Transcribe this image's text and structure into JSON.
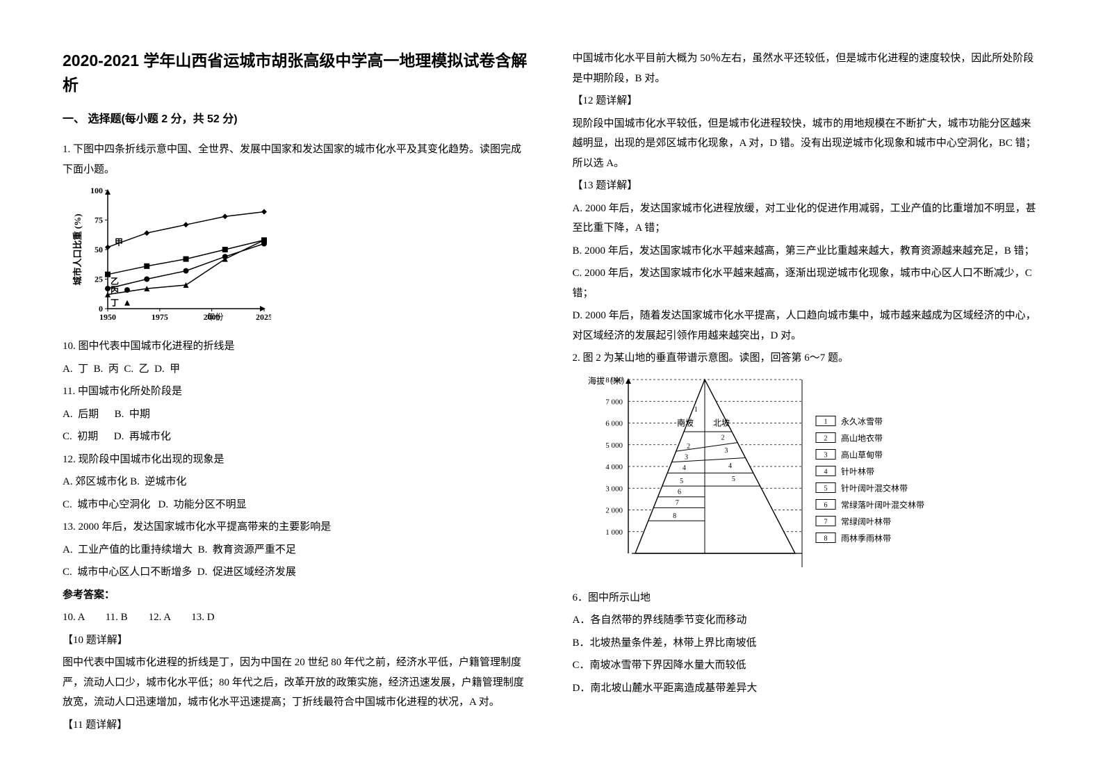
{
  "doc_title": "2020-2021 学年山西省运城市胡张高级中学高一地理模拟试卷含解析",
  "section1_head": "一、 选择题(每小题 2 分，共 52 分)",
  "q1_intro": "1. 下图中四条折线示意中国、全世界、发展中国家和发达国家的城市化水平及其变化趋势。读图完成下面小题。",
  "chart1": {
    "y_label": "城市人口比重 (%)",
    "x_label": "年份",
    "ymin": 0,
    "ymax": 100,
    "ystep": 25,
    "xticks": [
      "1950",
      "1975",
      "2000",
      "2025"
    ],
    "series": {
      "jia": {
        "label": "甲",
        "marker": "diamond",
        "color": "#000",
        "pts": [
          [
            0,
            52
          ],
          [
            1,
            64
          ],
          [
            2,
            71
          ],
          [
            3,
            78
          ],
          [
            4,
            82
          ]
        ]
      },
      "yi": {
        "label": "乙",
        "marker": "square",
        "color": "#000",
        "pts": [
          [
            0,
            29
          ],
          [
            1,
            36
          ],
          [
            2,
            42
          ],
          [
            3,
            50
          ],
          [
            4,
            58
          ]
        ]
      },
      "bing": {
        "label": "丙",
        "marker": "circle",
        "color": "#000",
        "pts": [
          [
            0,
            17
          ],
          [
            1,
            25
          ],
          [
            2,
            32
          ],
          [
            3,
            44
          ],
          [
            4,
            55
          ]
        ]
      },
      "ding": {
        "label": "丁",
        "marker": "triangle",
        "color": "#000",
        "pts": [
          [
            0,
            12
          ],
          [
            1,
            17
          ],
          [
            2,
            20
          ],
          [
            3,
            42
          ],
          [
            4,
            58
          ]
        ]
      }
    }
  },
  "q10": "10.  图中代表中国城市化进程的折线是",
  "q10_opts": "A.  丁  B.  丙  C.  乙  D.  甲",
  "q11": "11.  中国城市化所处阶段是",
  "q11_a": "A.  后期      B.  中期",
  "q11_b": "C.  初期      D.  再城市化",
  "q12": "12.  现阶段中国城市化出现的现象是",
  "q12_a": "A. 郊区城市化 B.  逆城市化",
  "q12_b": "C.  城市中心空洞化   D.  功能分区不明显",
  "q13": "13.  2000 年后，发达国家城市化水平提高带来的主要影响是",
  "q13_a": "A.  工业产值的比重持续增大  B.  教育资源严重不足",
  "q13_b": "C.  城市中心区人口不断增多  D.  促进区域经济发展",
  "ans_head": "参考答案：",
  "ans_row": "10. A        11. B        12. A        13. D",
  "exp10_head": "【10 题详解】",
  "exp10_body": "图中代表中国城市化进程的折线是丁，因为中国在 20 世纪 80 年代之前，经济水平低，户籍管理制度严，流动人口少，城市化水平低；80 年代之后，改革开放的政策实施，经济迅速发展，户籍管理制度放宽，流动人口迅速增加，城市化水平迅速提高；丁折线最符合中国城市化进程的状况，A 对。",
  "exp11_head": "【11 题详解】",
  "exp11_body": "中国城市化水平目前大概为 50％左右，虽然水平还较低，但是城市化进程的速度较快，因此所处阶段是中期阶段，B 对。",
  "exp12_head": "【12 题详解】",
  "exp12_body": "现阶段中国城市化水平较低，但是城市化进程较快，城市的用地规模在不断扩大，城市功能分区越来越明显，出现的是郊区城市化现象，A 对，D 错。没有出现逆城市化现象和城市中心空洞化，BC 错；所以选 A。",
  "exp13_head": "【13 题详解】",
  "exp13_a": "A.  2000 年后，发达国家城市化进程放缓，对工业化的促进作用减弱，工业产值的比重增加不明显，甚至比重下降，A 错；",
  "exp13_b": "B.  2000 年后，发达国家城市化水平越来越高，第三产业比重越来越大，教育资源越来越充足，B 错；",
  "exp13_c": "C.  2000 年后，发达国家城市化水平越来越高，逐渐出现逆城市化现象，城市中心区人口不断减少，C 错；",
  "exp13_d": "D.  2000 年后，随着发达国家城市化水平提高，人口趋向城市集中，城市越来越成为区域经济的中心，对区域经济的发展起引领作用越来越突出，D 对。",
  "q2_intro": "2. 图 2 为某山地的垂直带谱示意图。读图，回答第 6～7 题。",
  "chart2": {
    "y_label": "海拔（米）",
    "yticks": [
      1000,
      2000,
      3000,
      4000,
      5000,
      6000,
      7000,
      8000
    ],
    "left_label": "南坡",
    "right_label": "北坡",
    "legend_items": [
      {
        "n": "1",
        "t": "永久冰雪带"
      },
      {
        "n": "2",
        "t": "高山地衣带"
      },
      {
        "n": "3",
        "t": "高山草甸带"
      },
      {
        "n": "4",
        "t": "针叶林带"
      },
      {
        "n": "5",
        "t": "针叶阔叶混交林带"
      },
      {
        "n": "6",
        "t": "常绿落叶阔叶混交林带"
      },
      {
        "n": "7",
        "t": "常绿阔叶林带"
      },
      {
        "n": "8",
        "t": "雨林季雨林带"
      }
    ]
  },
  "q6": "6．图中所示山地",
  "q6_a": "A．各自然带的界线随季节变化而移动",
  "q6_b": "B．北坡热量条件差，林带上界比南坡低",
  "q6_c": "C．南坡冰雪带下界因降水量大而较低",
  "q6_d": "D．南北坡山麓水平距离造成基带差异大",
  "colors": {
    "text": "#000000",
    "axis": "#000000",
    "grid": "#b8b8b8",
    "bg": "#ffffff"
  }
}
